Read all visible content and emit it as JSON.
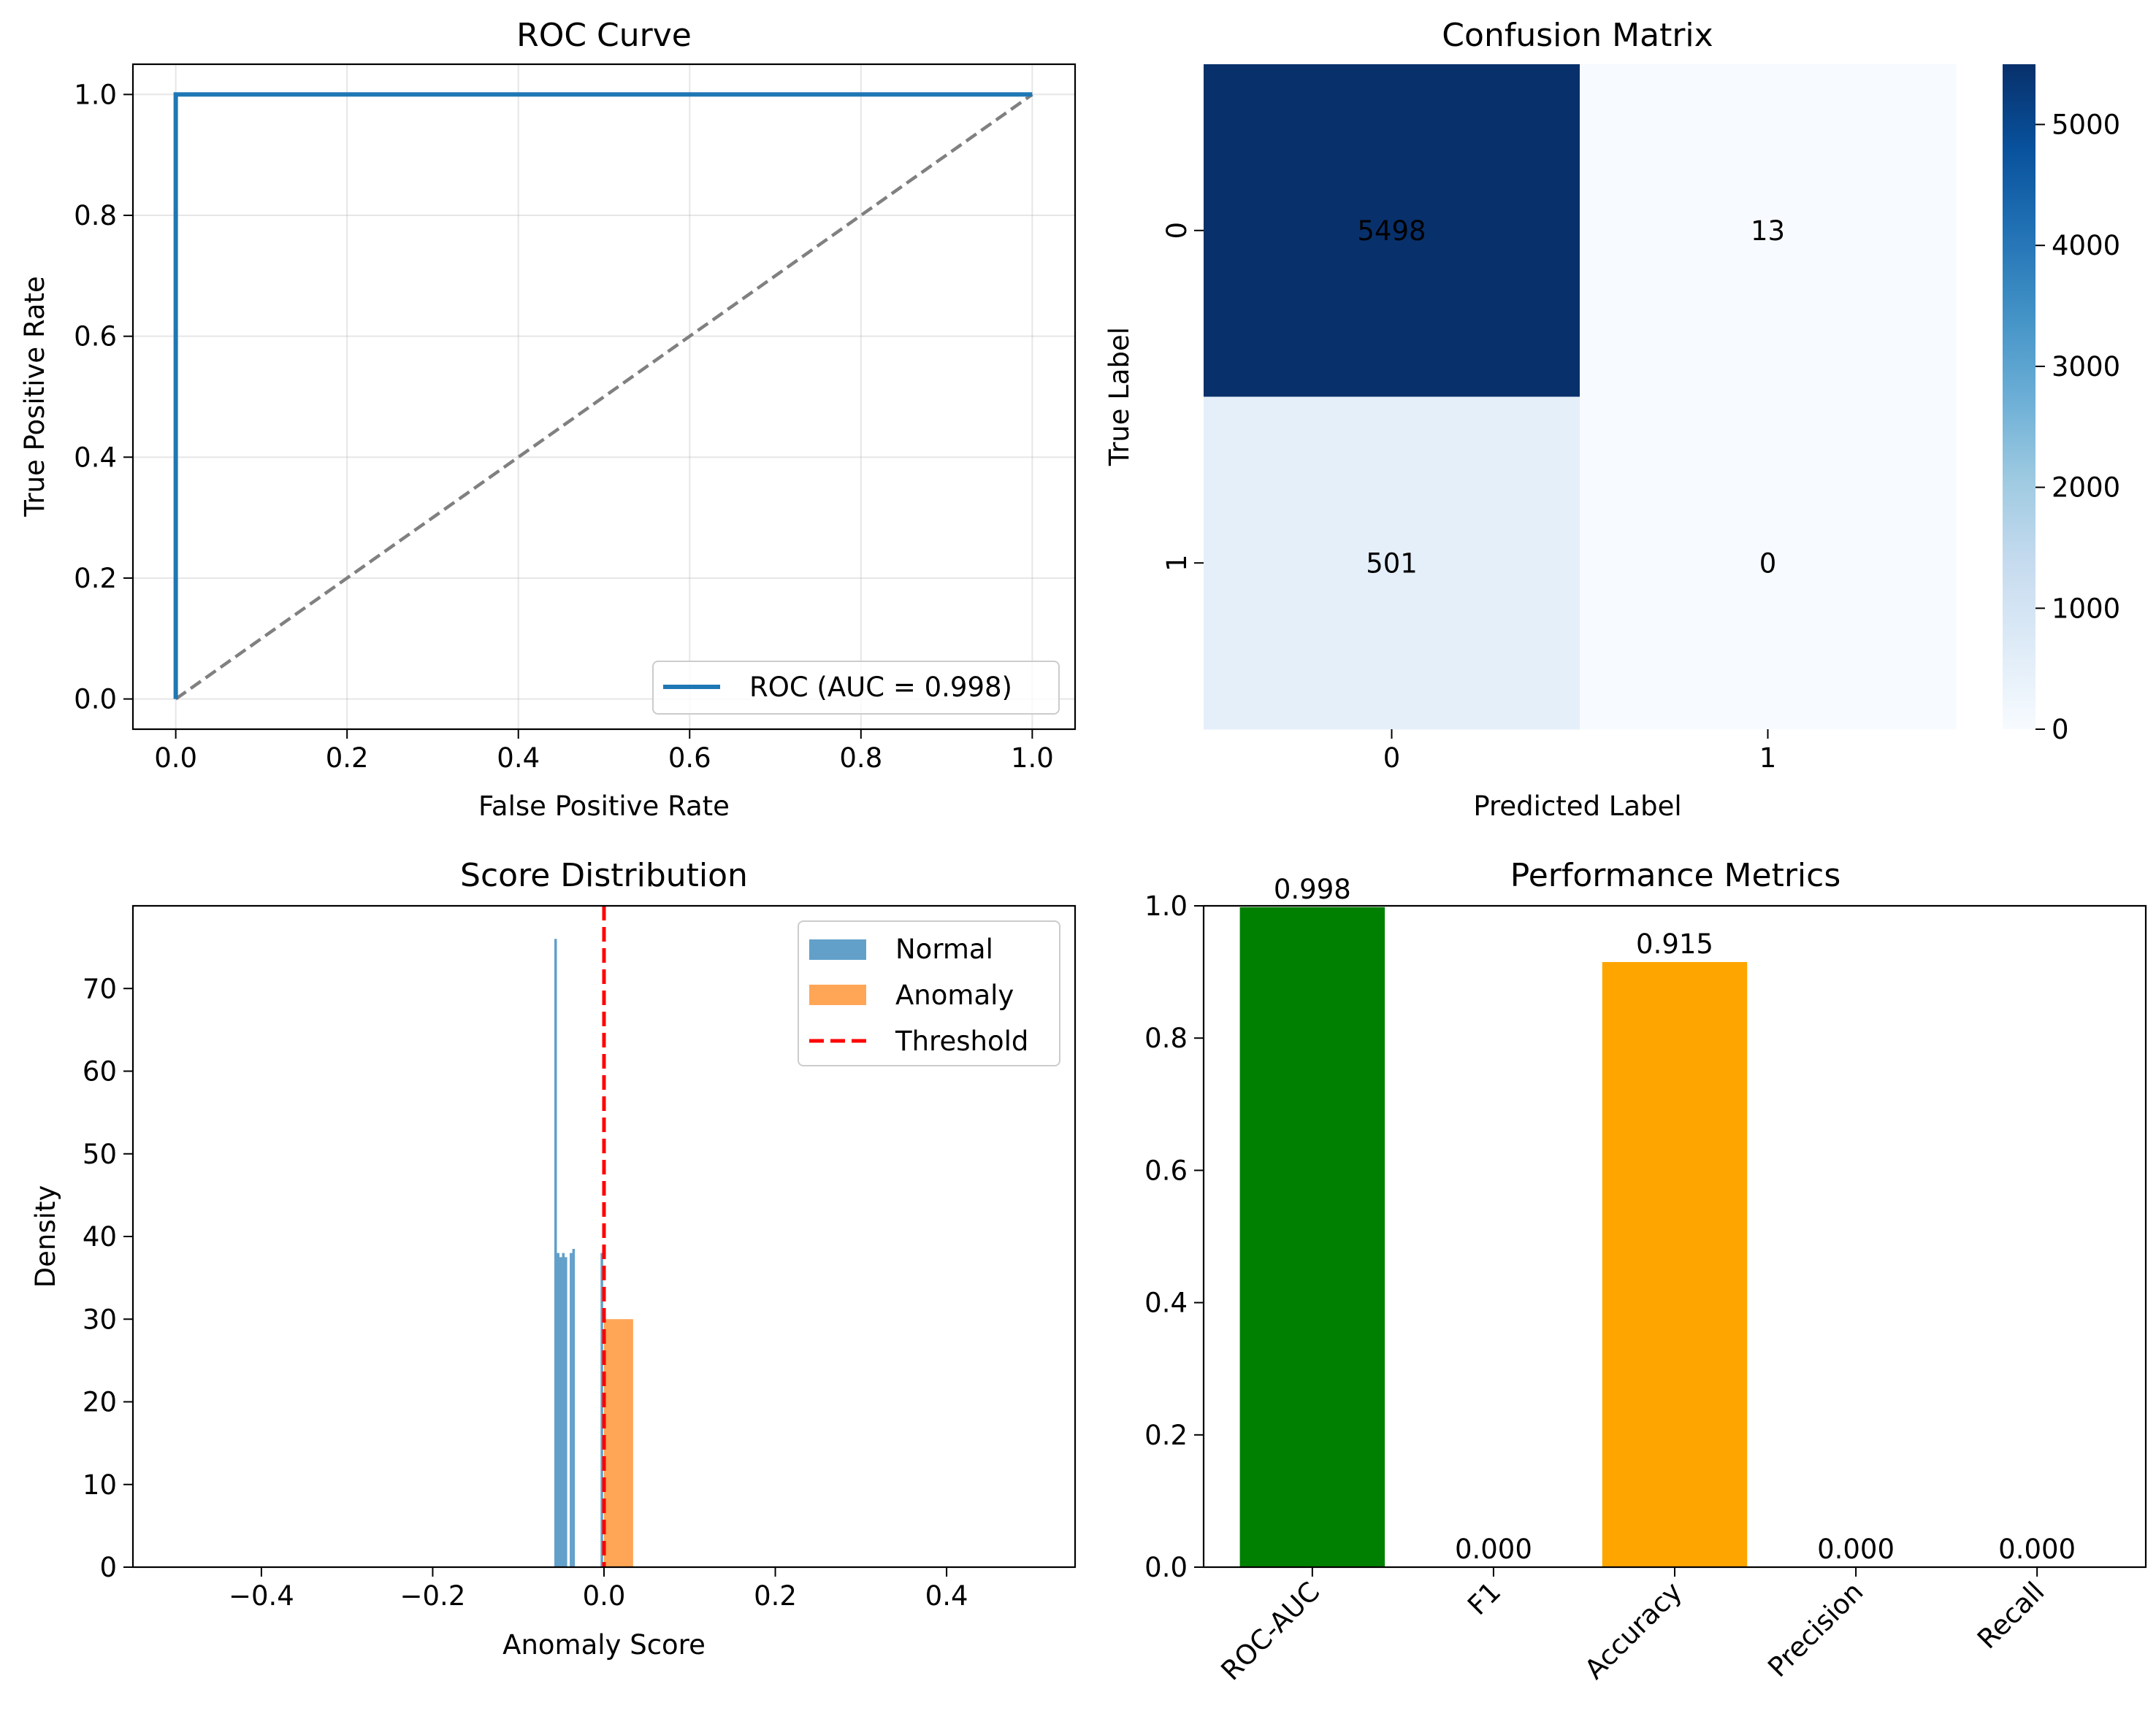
{
  "chart_data": [
    {
      "type": "line",
      "title": "ROC Curve",
      "xlabel": "False Positive Rate",
      "ylabel": "True Positive Rate",
      "xlim": [
        -0.05,
        1.05
      ],
      "ylim": [
        -0.05,
        1.05
      ],
      "xticks": [
        0.0,
        0.2,
        0.4,
        0.6,
        0.8,
        1.0
      ],
      "yticks": [
        0.0,
        0.2,
        0.4,
        0.6,
        0.8,
        1.0
      ],
      "xtick_labels": [
        "0.0",
        "0.2",
        "0.4",
        "0.6",
        "0.8",
        "1.0"
      ],
      "ytick_labels": [
        "0.0",
        "0.2",
        "0.4",
        "0.6",
        "0.8",
        "1.0"
      ],
      "grid": true,
      "legend_position": "lower-right",
      "series": [
        {
          "name": "ROC (AUC = 0.998)",
          "color": "#1f77b4",
          "style": "solid",
          "x": [
            0.0,
            0.0,
            0.002,
            1.0
          ],
          "y": [
            0.0,
            1.0,
            1.0,
            1.0
          ]
        },
        {
          "name": "",
          "color": "#808080",
          "style": "dashed",
          "x": [
            0.0,
            1.0
          ],
          "y": [
            0.0,
            1.0
          ]
        }
      ]
    },
    {
      "type": "heatmap",
      "title": "Confusion Matrix",
      "xlabel": "Predicted Label",
      "ylabel": "True Label",
      "x_categories": [
        "0",
        "1"
      ],
      "y_categories": [
        "0",
        "1"
      ],
      "values": [
        [
          5498,
          13
        ],
        [
          501,
          0
        ]
      ],
      "value_labels": [
        [
          "5498",
          "13"
        ],
        [
          "501",
          "0"
        ]
      ],
      "colormap": "Blues",
      "colorbar_range": [
        0,
        5498
      ],
      "colorbar_ticks": [
        0,
        1000,
        2000,
        3000,
        4000,
        5000
      ],
      "colorbar_tick_labels": [
        "0",
        "1000",
        "2000",
        "3000",
        "4000",
        "5000"
      ]
    },
    {
      "type": "histogram",
      "title": "Score Distribution",
      "xlabel": "Anomaly Score",
      "ylabel": "Density",
      "xlim": [
        -0.55,
        0.55
      ],
      "ylim": [
        0,
        80
      ],
      "xticks": [
        -0.4,
        -0.2,
        0.0,
        0.2,
        0.4
      ],
      "xtick_labels": [
        "−0.4",
        "−0.2",
        "0.0",
        "0.2",
        "0.4"
      ],
      "yticks": [
        0,
        10,
        20,
        30,
        40,
        50,
        60,
        70
      ],
      "ytick_labels": [
        "0",
        "10",
        "20",
        "30",
        "40",
        "50",
        "60",
        "70"
      ],
      "legend_position": "top-right",
      "threshold": {
        "name": "Threshold",
        "x": 0.0,
        "color": "#ff0000"
      },
      "series": [
        {
          "name": "Normal",
          "color": "#1f77b4",
          "opacity": 0.7,
          "bins": [
            {
              "x0": -0.058,
              "x1": -0.055,
              "density": 76
            },
            {
              "x0": -0.055,
              "x1": -0.052,
              "density": 38
            },
            {
              "x0": -0.052,
              "x1": -0.049,
              "density": 37.5
            },
            {
              "x0": -0.049,
              "x1": -0.046,
              "density": 38
            },
            {
              "x0": -0.046,
              "x1": -0.043,
              "density": 37.5
            },
            {
              "x0": -0.04,
              "x1": -0.037,
              "density": 38
            },
            {
              "x0": -0.037,
              "x1": -0.034,
              "density": 38.5
            },
            {
              "x0": -0.004,
              "x1": -0.001,
              "density": 38
            }
          ]
        },
        {
          "name": "Anomaly",
          "color": "#ff7f0e",
          "opacity": 0.7,
          "bins": [
            {
              "x0": 0.0,
              "x1": 0.034,
              "density": 30
            }
          ]
        }
      ]
    },
    {
      "type": "bar",
      "title": "Performance Metrics",
      "categories": [
        "ROC-AUC",
        "F1",
        "Accuracy",
        "Precision",
        "Recall"
      ],
      "values": [
        0.998,
        0.0,
        0.915,
        0.0,
        0.0
      ],
      "value_labels": [
        "0.998",
        "0.000",
        "0.915",
        "0.000",
        "0.000"
      ],
      "colors": [
        "#008000",
        "#ff0000",
        "#ffa500",
        "#800080",
        "#a52a2a"
      ],
      "ylim": [
        0,
        1.0
      ],
      "yticks": [
        0.0,
        0.2,
        0.4,
        0.6,
        0.8,
        1.0
      ],
      "ytick_labels": [
        "0.0",
        "0.2",
        "0.4",
        "0.6",
        "0.8",
        "1.0"
      ],
      "xlabel": "",
      "ylabel": "",
      "xtick_rotation": 45
    }
  ]
}
